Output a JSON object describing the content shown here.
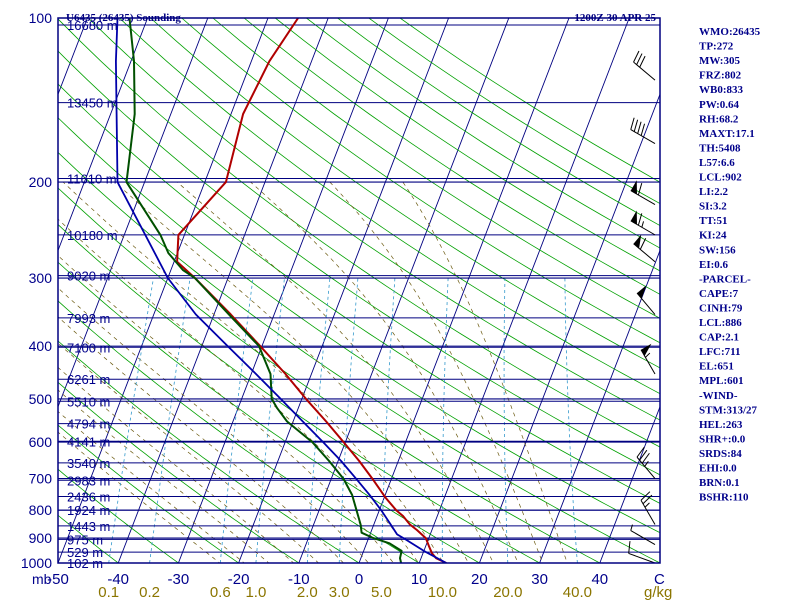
{
  "header": {
    "station": "U6435 (26435) Sounding",
    "time": "1200Z 30 APR 25"
  },
  "colors": {
    "frame": "#000080",
    "isobar": "#000080",
    "isotherm": "#000080",
    "dry_adiabat": "#00a000",
    "moist_adiabat": "#6b5a10",
    "mixing_ratio": "#3399cc",
    "temperature": "#b00000",
    "dewpoint": "#005000",
    "parcel": "#0000aa",
    "wind": "#000000",
    "mixing_label": "#8b7500"
  },
  "axes": {
    "pressure_unit_label": "mb",
    "temp_unit_label": "C",
    "mixing_unit_label": "g/kg"
  },
  "indices": [
    "WMO:26435",
    "TP:272",
    "MW:305",
    "FRZ:802",
    "WB0:833",
    "PW:0.64",
    "RH:68.2",
    "MAXT:17.1",
    "TH:5408",
    "L57:6.6",
    "LCL:902",
    "LI:2.2",
    "SI:3.2",
    "TT:51",
    "KI:24",
    "SW:156",
    "EI:0.6",
    "-PARCEL-",
    "CAPE:7",
    "CINH:79",
    "LCL:886",
    "CAP:2.1",
    "LFC:711",
    "EL:651",
    "MPL:601",
    "-WIND-",
    "STM:313/27",
    "HEL:263",
    "SHR+:0.0",
    "SRDS:84",
    "EHI:0.0",
    "BRN:0.1",
    "BSHR:110"
  ],
  "chart_data": {
    "type": "line",
    "title": "U6435 (26435) Sounding",
    "subtitle": "1200Z 30 APR 25",
    "xlabel": "C",
    "ylabel": "mb",
    "skew_t": true,
    "y_scale": "log",
    "ylim": [
      1000,
      100
    ],
    "xlim_at_1000mb": [
      -50,
      50
    ],
    "pressure_ticks": [
      100,
      200,
      300,
      400,
      500,
      600,
      700,
      800,
      900,
      1000
    ],
    "temperature_ticks": [
      -50,
      -40,
      -30,
      -20,
      -10,
      0,
      10,
      20,
      30,
      40
    ],
    "temperature_tick_labels": [
      "-50",
      "-40",
      "-30",
      "-20",
      "-10",
      "0",
      "10",
      "20",
      "30",
      "40"
    ],
    "mixing_ratio_labels": [
      {
        "w": 0.1,
        "text": "0.1"
      },
      {
        "w": 0.2,
        "text": "0.2"
      },
      {
        "w": 0.6,
        "text": "0.6"
      },
      {
        "w": 1.0,
        "text": "1.0"
      },
      {
        "w": 2.0,
        "text": "2.0"
      },
      {
        "w": 3.0,
        "text": "3.0"
      },
      {
        "w": 5.0,
        "text": "5.0"
      },
      {
        "w": 10.0,
        "text": "10.0"
      },
      {
        "w": 20.0,
        "text": "20.0"
      },
      {
        "w": 40.0,
        "text": "40.0"
      }
    ],
    "height_labels": [
      {
        "p": 103,
        "text": "16680 m"
      },
      {
        "p": 143,
        "text": "13450 m"
      },
      {
        "p": 197,
        "text": "11610 m"
      },
      {
        "p": 250,
        "text": "10180 m"
      },
      {
        "p": 297,
        "text": "9020 m"
      },
      {
        "p": 355,
        "text": "7993 m"
      },
      {
        "p": 402,
        "text": "7100 m"
      },
      {
        "p": 460,
        "text": "6261 m"
      },
      {
        "p": 505,
        "text": "5510 m"
      },
      {
        "p": 555,
        "text": "4794 m"
      },
      {
        "p": 598,
        "text": "4141 m"
      },
      {
        "p": 655,
        "text": "3540 m"
      },
      {
        "p": 705,
        "text": "2983 m"
      },
      {
        "p": 755,
        "text": "2436 m"
      },
      {
        "p": 800,
        "text": "1924 m"
      },
      {
        "p": 855,
        "text": "1443 m"
      },
      {
        "p": 905,
        "text": "975 m"
      },
      {
        "p": 955,
        "text": "529 m"
      },
      {
        "p": 1000,
        "text": "102 m"
      }
    ],
    "series": [
      {
        "key": "temperature",
        "points": [
          [
            1000,
            14.5
          ],
          [
            980,
            12.5
          ],
          [
            960,
            11.5
          ],
          [
            930,
            10.5
          ],
          [
            900,
            9.5
          ],
          [
            870,
            7.5
          ],
          [
            850,
            6.0
          ],
          [
            820,
            4.3
          ],
          [
            800,
            2.8
          ],
          [
            760,
            0.3
          ],
          [
            700,
            -3.2
          ],
          [
            650,
            -6.5
          ],
          [
            600,
            -10.3
          ],
          [
            550,
            -14.5
          ],
          [
            500,
            -19.3
          ],
          [
            450,
            -24.3
          ],
          [
            400,
            -30.3
          ],
          [
            350,
            -37.2
          ],
          [
            300,
            -45.5
          ],
          [
            280,
            -49.5
          ],
          [
            250,
            -51.0
          ],
          [
            200,
            -46.5
          ],
          [
            150,
            -48.0
          ],
          [
            120,
            -47.0
          ],
          [
            100,
            -45.0
          ]
        ]
      },
      {
        "key": "dewpoint",
        "points": [
          [
            1000,
            7.0
          ],
          [
            980,
            6.5
          ],
          [
            950,
            6.3
          ],
          [
            920,
            3.8
          ],
          [
            900,
            0.8
          ],
          [
            880,
            -1.5
          ],
          [
            850,
            -2.2
          ],
          [
            800,
            -3.8
          ],
          [
            750,
            -5.5
          ],
          [
            700,
            -8.0
          ],
          [
            650,
            -11.5
          ],
          [
            600,
            -15.5
          ],
          [
            550,
            -21.0
          ],
          [
            520,
            -23.5
          ],
          [
            500,
            -25.0
          ],
          [
            450,
            -26.8
          ],
          [
            400,
            -30.5
          ],
          [
            350,
            -37.5
          ],
          [
            300,
            -45.5
          ],
          [
            290,
            -48.0
          ],
          [
            270,
            -51.5
          ],
          [
            250,
            -54.0
          ],
          [
            200,
            -63.0
          ],
          [
            150,
            -66.0
          ],
          [
            120,
            -69.5
          ],
          [
            100,
            -73.0
          ]
        ]
      },
      {
        "key": "parcel",
        "points": [
          [
            1000,
            14.5
          ],
          [
            950,
            10.0
          ],
          [
            900,
            5.8
          ],
          [
            886,
            4.5
          ],
          [
            850,
            2.8
          ],
          [
            800,
            0.3
          ],
          [
            750,
            -2.6
          ],
          [
            700,
            -5.9
          ],
          [
            650,
            -9.5
          ],
          [
            600,
            -13.7
          ],
          [
            550,
            -18.4
          ],
          [
            500,
            -23.5
          ],
          [
            450,
            -29.2
          ],
          [
            400,
            -35.7
          ],
          [
            350,
            -43.0
          ],
          [
            300,
            -50.0
          ],
          [
            250,
            -56.5
          ],
          [
            200,
            -64.5
          ],
          [
            150,
            -69.0
          ],
          [
            120,
            -72.5
          ],
          [
            100,
            -75.0
          ]
        ]
      }
    ],
    "wind_barbs": [
      {
        "p": 1000,
        "dir": 290,
        "speed": 10
      },
      {
        "p": 925,
        "dir": 300,
        "speed": 5
      },
      {
        "p": 850,
        "dir": 330,
        "speed": 25
      },
      {
        "p": 700,
        "dir": 320,
        "speed": 35
      },
      {
        "p": 450,
        "dir": 330,
        "speed": 55
      },
      {
        "p": 350,
        "dir": 320,
        "speed": 50
      },
      {
        "p": 280,
        "dir": 310,
        "speed": 60
      },
      {
        "p": 250,
        "dir": 300,
        "speed": 65
      },
      {
        "p": 220,
        "dir": 300,
        "speed": 60
      },
      {
        "p": 170,
        "dir": 300,
        "speed": 40
      },
      {
        "p": 130,
        "dir": 310,
        "speed": 30
      }
    ]
  }
}
